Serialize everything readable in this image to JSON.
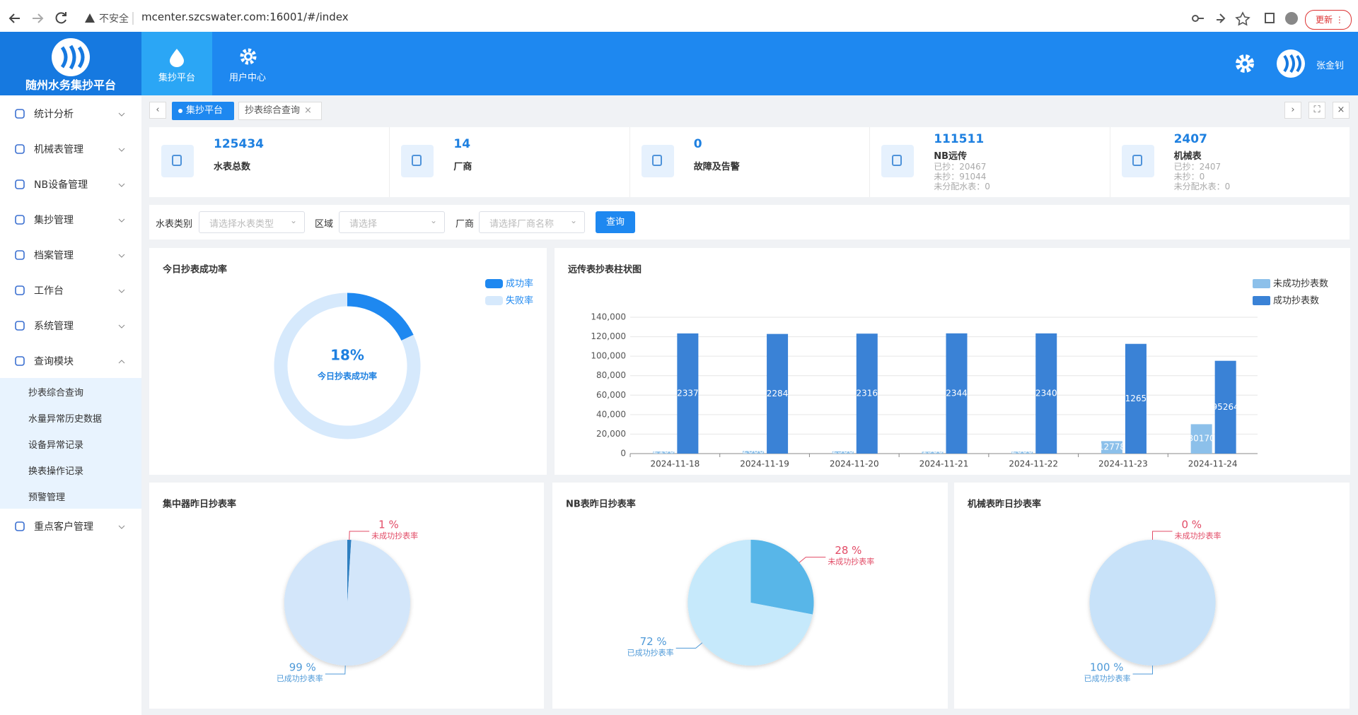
{
  "browser": {
    "security": "不安全",
    "url": "mcenter.szcswater.com:16001/#/index",
    "update": "更新"
  },
  "header": {
    "logo": "随州水务集抄平台",
    "nav": [
      "集抄平台",
      "用户中心"
    ],
    "user": "张金钊"
  },
  "sidebar": {
    "menu": [
      "统计分析",
      "机械表管理",
      "NB设备管理",
      "集抄管理",
      "档案管理",
      "工作台",
      "系统管理",
      "查询模块",
      "重点客户管理"
    ],
    "submenu": [
      "抄表综合查询",
      "水量异常历史数据",
      "设备异常记录",
      "换表操作记录",
      "预警管理"
    ]
  },
  "tabs": [
    "集抄平台",
    "抄表综合查询"
  ],
  "stats": [
    {
      "value": 125434,
      "label": "水表总数"
    },
    {
      "value": 14,
      "label": "厂商"
    },
    {
      "value": 0,
      "label": "故障及告警"
    },
    {
      "value": 111511,
      "label": "NB远传",
      "details": [
        "已抄：20467",
        "未抄：91044",
        "未分配水表：0"
      ]
    },
    {
      "value": 2407,
      "label": "机械表",
      "details": [
        "已抄：2407",
        "未抄：0",
        "未分配水表：0"
      ]
    }
  ],
  "filters": {
    "fields": [
      {
        "label": "水表类别",
        "placeholder": "请选择水表类型"
      },
      {
        "label": "区域",
        "placeholder": "请选择"
      },
      {
        "label": "厂商",
        "placeholder": "请选择厂商名称"
      }
    ],
    "button": "查询"
  },
  "chart_data": [
    {
      "type": "donut",
      "title": "今日抄表成功率",
      "categories": [
        "成功率",
        "失败率"
      ],
      "values": [
        18,
        82
      ],
      "value_labels": [
        "18%",
        null
      ],
      "colors": [
        "#1e88f0",
        "#d6e9fc"
      ],
      "center_text": "今日抄表成功率"
    },
    {
      "type": "bar",
      "title": "远传表抄表柱状图",
      "categories": [
        "2024-11-18",
        "2024-11-19",
        "2024-11-20",
        "2024-11-21",
        "2024-11-22",
        "2024-11-23",
        "2024-11-24"
      ],
      "series": [
        {
          "name": "未成功抄表数",
          "color": "#8cc0ea",
          "values": [
            2100,
            2600,
            2300,
            1900,
            2000,
            12778,
            30170
          ]
        },
        {
          "name": "成功抄表数",
          "color": "#3a82d6",
          "values": [
            123370,
            122840,
            123160,
            123440,
            123400,
            112650,
            95264
          ]
        }
      ],
      "ylim": [
        0,
        140000
      ],
      "yticks": [
        0,
        {
          "value": 20000,
          "label": "20,000"
        },
        {
          "value": 40000,
          "label": "40,000"
        },
        {
          "value": 60000,
          "label": "60,000"
        },
        {
          "value": 80000,
          "label": "80,000"
        },
        {
          "value": 100000,
          "label": "100,000"
        },
        {
          "value": 120000,
          "label": "120,000"
        },
        {
          "value": 140000,
          "label": "140,000"
        }
      ],
      "grid": true
    },
    {
      "type": "pie",
      "title": "集中器昨日抄表率",
      "categories": [
        "未成功抄表率",
        "已成功抄表率"
      ],
      "values": [
        1,
        99
      ],
      "value_labels": [
        "1 %",
        "99 %"
      ],
      "colors": [
        "#2f7fc0",
        "#d3e6fa"
      ],
      "label_colors": [
        "#e24b66",
        "#4f9ad8"
      ]
    },
    {
      "type": "pie",
      "title": "NB表昨日抄表率",
      "categories": [
        "未成功抄表率",
        "已成功抄表率"
      ],
      "values": [
        28,
        72
      ],
      "value_labels": [
        "28 %",
        "72 %"
      ],
      "colors": [
        "#58b6e8",
        "#c6e9fb"
      ],
      "label_colors": [
        "#e24b66",
        "#4f9ad8"
      ]
    },
    {
      "type": "pie",
      "title": "机械表昨日抄表率",
      "categories": [
        "未成功抄表率",
        "已成功抄表率"
      ],
      "values": [
        0,
        100
      ],
      "value_labels": [
        "0 %",
        "100 %"
      ],
      "colors": [
        "#3a82d6",
        "#c8e2f9"
      ],
      "label_colors": [
        "#e24b66",
        "#4f9ad8"
      ]
    }
  ]
}
